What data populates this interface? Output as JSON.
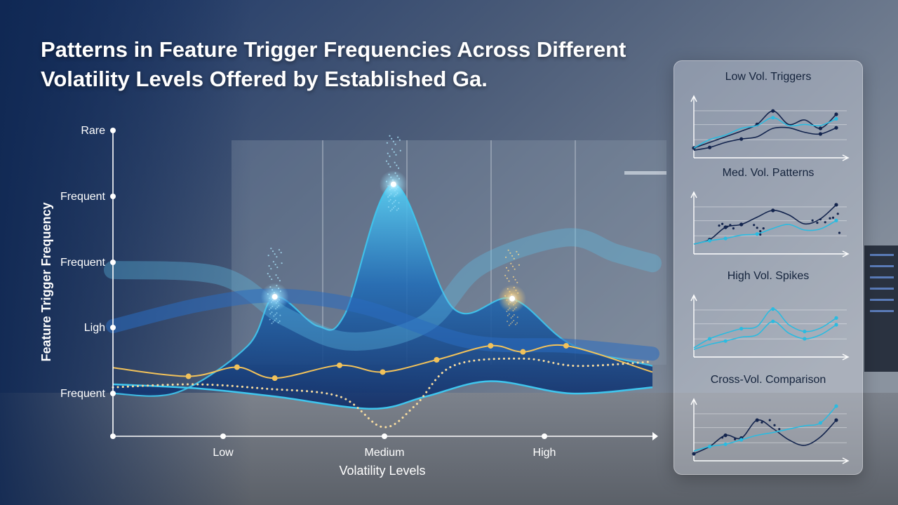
{
  "title": "Patterns in Feature Trigger Frequencies Across Different Volatility Levels Offered by Established Ga.",
  "colors": {
    "background_top": "#1d3766",
    "background_bottom": "#9aa2ad",
    "series_cyan": "#3fc6ee",
    "series_blue": "#1f64b4",
    "series_navy": "#14326e",
    "series_gold": "#f2c25a",
    "axis": "#ffffff",
    "mini_dark": "#13244d",
    "mini_light": "#2bbbe0"
  },
  "chart_data": [
    {
      "type": "area",
      "title": "Patterns in Feature Trigger Frequencies Across Different Volatility Levels Offered by Established Ga.",
      "xlabel": "Volatility Levels",
      "ylabel": "Feature Trigger Frequency",
      "x_ticks": [
        "Low",
        "Medium",
        "High"
      ],
      "y_ticks": [
        "Rare",
        "Frequent",
        "Frequent",
        "Ligh",
        "Frequent"
      ],
      "xlim": [
        0,
        10
      ],
      "ylim": [
        0,
        5
      ],
      "grid": false,
      "series": [
        {
          "values": [
            [
              0,
              0.7
            ],
            [
              1.2,
              0.72
            ],
            [
              2.5,
              1.48
            ],
            [
              3.0,
              2.28
            ],
            [
              3.8,
              1.8
            ],
            [
              4.3,
              2.0
            ],
            [
              5.2,
              4.12
            ],
            [
              6.3,
              2.1
            ],
            [
              7.4,
              2.25
            ],
            [
              8.5,
              1.5
            ],
            [
              10,
              1.15
            ]
          ],
          "peaks": [
            [
              3.0,
              2.28
            ],
            [
              5.2,
              4.12
            ],
            [
              7.4,
              2.25
            ]
          ]
        },
        {
          "values": [
            [
              0,
              0.85
            ],
            [
              1.6,
              0.78
            ],
            [
              3.0,
              0.65
            ],
            [
              4.8,
              0.45
            ],
            [
              5.8,
              0.65
            ],
            [
              7.0,
              0.9
            ],
            [
              8.5,
              0.7
            ],
            [
              10,
              0.8
            ]
          ]
        },
        {
          "values": [
            [
              0,
              1.12
            ],
            [
              1.4,
              0.98
            ],
            [
              2.3,
              1.13
            ],
            [
              3.0,
              0.95
            ],
            [
              4.2,
              1.16
            ],
            [
              5.0,
              1.05
            ],
            [
              6.0,
              1.25
            ],
            [
              7.0,
              1.48
            ],
            [
              7.6,
              1.38
            ],
            [
              8.4,
              1.48
            ],
            [
              10,
              1.05
            ]
          ]
        },
        {
          "values": [
            [
              0,
              0.8
            ],
            [
              1.5,
              0.85
            ],
            [
              2.8,
              0.78
            ],
            [
              4.2,
              0.65
            ],
            [
              5.0,
              0.15
            ],
            [
              5.6,
              0.5
            ],
            [
              6.3,
              1.15
            ],
            [
              7.6,
              1.27
            ],
            [
              8.6,
              1.15
            ],
            [
              10,
              1.22
            ]
          ]
        },
        {
          "values": [
            [
              0,
              2.72
            ],
            [
              2.0,
              2.62
            ],
            [
              3.2,
              1.95
            ],
            [
              4.4,
              1.55
            ],
            [
              5.8,
              1.85
            ],
            [
              6.8,
              2.78
            ],
            [
              8.4,
              3.25
            ],
            [
              9.3,
              3.0
            ],
            [
              10,
              2.83
            ]
          ]
        },
        {
          "values": [
            [
              0,
              1.8
            ],
            [
              1.6,
              2.15
            ],
            [
              3.0,
              2.3
            ],
            [
              4.6,
              2.12
            ],
            [
              6.6,
              1.55
            ],
            [
              8.4,
              1.48
            ],
            [
              10,
              1.35
            ]
          ]
        }
      ]
    },
    {
      "type": "line",
      "title": "Low Vol. Triggers",
      "series": [
        {
          "color": "dark",
          "values": [
            [
              0,
              1
            ],
            [
              1,
              2
            ],
            [
              2,
              3
            ],
            [
              3,
              4
            ],
            [
              4,
              5.2
            ],
            [
              5,
              7.6
            ],
            [
              6,
              5.2
            ],
            [
              7,
              6
            ],
            [
              8,
              4.5
            ],
            [
              9,
              7
            ]
          ],
          "markers": [
            [
              0,
              1
            ],
            [
              4,
              5.2
            ],
            [
              5,
              7.6
            ],
            [
              8,
              4.5
            ],
            [
              9,
              7
            ]
          ]
        },
        {
          "color": "light",
          "values": [
            [
              0,
              1
            ],
            [
              1,
              2.5
            ],
            [
              2,
              3.3
            ],
            [
              3,
              4.5
            ],
            [
              4,
              5
            ],
            [
              5,
              6.4
            ],
            [
              6,
              5
            ],
            [
              7,
              5.2
            ],
            [
              8,
              5
            ],
            [
              9,
              6.2
            ]
          ],
          "markers": [
            [
              5,
              6.4
            ],
            [
              9,
              6.2
            ]
          ]
        },
        {
          "color": "dark",
          "values": [
            [
              0,
              0.6
            ],
            [
              1,
              1.1
            ],
            [
              2,
              2
            ],
            [
              3,
              2.6
            ],
            [
              4,
              3
            ],
            [
              5,
              4.5
            ],
            [
              6,
              4.6
            ],
            [
              7,
              3.8
            ],
            [
              8,
              3.5
            ],
            [
              9,
              4.6
            ]
          ],
          "markers": [
            [
              1,
              1.1
            ],
            [
              3,
              2.6
            ],
            [
              8,
              3.5
            ],
            [
              9,
              4.6
            ]
          ]
        }
      ]
    },
    {
      "type": "line",
      "title": "Med. Vol. Patterns",
      "series": [
        {
          "color": "dark",
          "values": [
            [
              0,
              1
            ],
            [
              1,
              1.8
            ],
            [
              2,
              4
            ],
            [
              3,
              4.5
            ],
            [
              4,
              5.8
            ],
            [
              5,
              7
            ],
            [
              6,
              6.2
            ],
            [
              7,
              4.6
            ],
            [
              8,
              5.5
            ],
            [
              9,
              8
            ]
          ],
          "markers": [
            [
              1,
              1.8
            ],
            [
              2,
              4
            ],
            [
              3,
              4.5
            ],
            [
              5,
              7
            ],
            [
              9,
              8
            ]
          ]
        },
        {
          "color": "light",
          "values": [
            [
              0,
              1
            ],
            [
              1,
              1.6
            ],
            [
              2,
              2
            ],
            [
              3,
              2.6
            ],
            [
              4,
              2.8
            ],
            [
              5,
              3.8
            ],
            [
              6,
              4.5
            ],
            [
              7,
              3.5
            ],
            [
              8,
              3.7
            ],
            [
              9,
              5.2
            ]
          ],
          "markers": [
            [
              1,
              1.6
            ],
            [
              2,
              2
            ],
            [
              4,
              2.8
            ],
            [
              9,
              5.2
            ]
          ]
        }
      ],
      "scatter": [
        [
          1.6,
          4.3
        ],
        [
          1.8,
          4.6
        ],
        [
          2.1,
          4.1
        ],
        [
          2.3,
          4.4
        ],
        [
          2.5,
          3.8
        ],
        [
          3.8,
          4.4
        ],
        [
          4.0,
          3.9
        ],
        [
          4.2,
          3.3
        ],
        [
          4.4,
          3.8
        ],
        [
          4.2,
          2.7
        ],
        [
          7.5,
          5.2
        ],
        [
          7.8,
          4.8
        ],
        [
          8.0,
          5.4
        ],
        [
          8.3,
          4.9
        ],
        [
          8.6,
          5.6
        ],
        [
          8.8,
          5.7
        ],
        [
          9.1,
          6.4
        ],
        [
          9.2,
          3.0
        ]
      ]
    },
    {
      "type": "line",
      "title": "High Vol. Spikes",
      "series": [
        {
          "color": "light",
          "values": [
            [
              0,
              0.9
            ],
            [
              1,
              2.5
            ],
            [
              2,
              3.5
            ],
            [
              3,
              4.3
            ],
            [
              4,
              4.7
            ],
            [
              5,
              7.8
            ],
            [
              6,
              5
            ],
            [
              7,
              3.8
            ],
            [
              8,
              4.4
            ],
            [
              9,
              6.2
            ]
          ],
          "markers": [
            [
              1,
              2.5
            ],
            [
              3,
              4.3
            ],
            [
              5,
              7.8
            ],
            [
              7,
              3.8
            ],
            [
              9,
              6.2
            ]
          ]
        },
        {
          "color": "light",
          "values": [
            [
              0,
              0.6
            ],
            [
              1,
              1.5
            ],
            [
              2,
              2.1
            ],
            [
              3,
              2.8
            ],
            [
              4,
              3.2
            ],
            [
              5,
              5.6
            ],
            [
              6,
              3.5
            ],
            [
              7,
              2.5
            ],
            [
              8,
              3.2
            ],
            [
              9,
              5
            ]
          ],
          "markers": [
            [
              2,
              2.1
            ],
            [
              5,
              5.6
            ],
            [
              7,
              2.5
            ],
            [
              9,
              5
            ]
          ]
        }
      ]
    },
    {
      "type": "line",
      "title": "Cross-Vol. Comparison",
      "series": [
        {
          "color": "dark",
          "values": [
            [
              0,
              0.5
            ],
            [
              1,
              1.8
            ],
            [
              2,
              3.8
            ],
            [
              3,
              3.3
            ],
            [
              4,
              6.5
            ],
            [
              5,
              5
            ],
            [
              6,
              3
            ],
            [
              7,
              2
            ],
            [
              8,
              3.5
            ],
            [
              9,
              6.5
            ]
          ],
          "markers": [
            [
              0,
              0.5
            ],
            [
              2,
              3.8
            ],
            [
              3,
              3.3
            ],
            [
              4,
              6.5
            ],
            [
              9,
              6.5
            ]
          ]
        },
        {
          "color": "light",
          "values": [
            [
              0,
              1
            ],
            [
              1,
              1.8
            ],
            [
              2,
              2.2
            ],
            [
              3,
              3
            ],
            [
              4,
              3.8
            ],
            [
              5,
              4.3
            ],
            [
              6,
              4.9
            ],
            [
              7,
              5.5
            ],
            [
              8,
              6
            ],
            [
              9,
              9
            ]
          ],
          "markers": [
            [
              1,
              1.8
            ],
            [
              2,
              2.2
            ],
            [
              3,
              3
            ],
            [
              8,
              6
            ],
            [
              9,
              9
            ]
          ]
        }
      ],
      "scatter": [
        [
          1.8,
          3.4
        ],
        [
          2.6,
          3.1
        ],
        [
          4.3,
          6.1
        ],
        [
          4.8,
          6.5
        ],
        [
          5.1,
          5.6
        ],
        [
          5.4,
          4.9
        ]
      ]
    }
  ]
}
